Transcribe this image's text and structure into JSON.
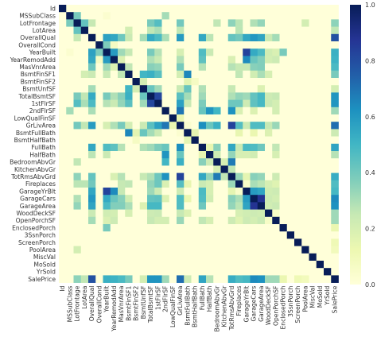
{
  "chart_data": {
    "type": "heatmap",
    "title": "",
    "xlabel": "",
    "ylabel": "",
    "variables": [
      "Id",
      "MSSubClass",
      "LotFrontage",
      "LotArea",
      "OverallQual",
      "OverallCond",
      "YearBuilt",
      "YearRemodAdd",
      "MasVnrArea",
      "BsmtFinSF1",
      "BsmtFinSF2",
      "BsmtUnfSF",
      "TotalBsmtSF",
      "1stFlrSF",
      "2ndFlrSF",
      "LowQualFinSF",
      "GrLivArea",
      "BsmtFullBath",
      "BsmtHalfBath",
      "FullBath",
      "HalfBath",
      "BedroomAbvGr",
      "KitchenAbvGr",
      "TotRmsAbvGrd",
      "Fireplaces",
      "GarageYrBlt",
      "GarageCars",
      "GarageArea",
      "WoodDeckSF",
      "OpenPorchSF",
      "EnclosedPorch",
      "3SsnPorch",
      "ScreenPorch",
      "PoolArea",
      "MiscVal",
      "MoSold",
      "YrSold",
      "SalePrice"
    ],
    "x_tick_labels": [
      "Id",
      "MSSubClass",
      "LotFrontage",
      "LotArea",
      "OverallQual",
      "OverallCond",
      "YearBuilt",
      "YearRemodAdd",
      "MasVnrArea",
      "BsmtFinSF1",
      "BsmtFinSF2",
      "BsmtUnfSF",
      "TotalBsmtSF",
      "1stFlrSF",
      "2ndFlrSF",
      "LowQualFinSF",
      "GrLivArea",
      "BsmtFullBath",
      "BsmtHalfBath",
      "FullBath",
      "HalfBath",
      "BedroomAbvGr",
      "KitchenAbvGr",
      "TotRmsAbvGrd",
      "Fireplaces",
      "GarageYrBlt",
      "GarageCars",
      "GarageArea",
      "WoodDeckSF",
      "OpenPorchSF",
      "EnclosedPorch",
      "3SsnPorch",
      "ScreenPorch",
      "PoolArea",
      "MiscVal",
      "MoSold",
      "YrSold",
      "SalePrice"
    ],
    "y_tick_labels": [
      "Id",
      "MSSubClass",
      "LotFrontage",
      "LotArea",
      "OverallQual",
      "OverallCond",
      "YearBuilt",
      "YearRemodAdd",
      "MasVnrArea",
      "BsmtFinSF1",
      "BsmtFinSF2",
      "BsmtUnfSF",
      "TotalBsmtSF",
      "1stFlrSF",
      "2ndFlrSF",
      "LowQualFinSF",
      "GrLivArea",
      "BsmtFullBath",
      "BsmtHalfBath",
      "FullBath",
      "HalfBath",
      "BedroomAbvGr",
      "KitchenAbvGr",
      "TotRmsAbvGrd",
      "Fireplaces",
      "GarageYrBlt",
      "GarageCars",
      "GarageArea",
      "WoodDeckSF",
      "OpenPorchSF",
      "EnclosedPorch",
      "3SsnPorch",
      "ScreenPorch",
      "PoolArea",
      "MiscVal",
      "MoSold",
      "YrSold",
      "SalePrice"
    ],
    "value_range": [
      0,
      1
    ],
    "colormap": [
      "#ffffd9",
      "#edf8b1",
      "#c7e9b4",
      "#7fcdbb",
      "#41b6c4",
      "#1d91c0",
      "#225ea8",
      "#253494",
      "#081d58"
    ],
    "colorbar": {
      "ticks": [
        0.0,
        0.2,
        0.4,
        0.6,
        0.8,
        1.0
      ],
      "tick_labels": [
        "0.0",
        "0.2",
        "0.4",
        "0.6",
        "0.8",
        "1.0"
      ]
    },
    "pairs": [
      [
        "MSSubClass",
        "LotFrontage",
        0.39
      ],
      [
        "MSSubClass",
        "2ndFlrSF",
        0.31
      ],
      [
        "MSSubClass",
        "YearBuilt",
        0.03
      ],
      [
        "LotFrontage",
        "LotArea",
        0.43
      ],
      [
        "LotFrontage",
        "1stFlrSF",
        0.46
      ],
      [
        "LotFrontage",
        "TotalBsmtSF",
        0.39
      ],
      [
        "LotFrontage",
        "GrLivArea",
        0.4
      ],
      [
        "LotFrontage",
        "TotRmsAbvGrd",
        0.35
      ],
      [
        "LotFrontage",
        "GarageArea",
        0.34
      ],
      [
        "LotFrontage",
        "GarageCars",
        0.29
      ],
      [
        "LotFrontage",
        "SalePrice",
        0.35
      ],
      [
        "LotFrontage",
        "OverallQual",
        0.25
      ],
      [
        "LotFrontage",
        "BedroomAbvGr",
        0.26
      ],
      [
        "LotFrontage",
        "PoolArea",
        0.21
      ],
      [
        "LotFrontage",
        "Fireplaces",
        0.27
      ],
      [
        "LotArea",
        "TotalBsmtSF",
        0.26
      ],
      [
        "LotArea",
        "1stFlrSF",
        0.3
      ],
      [
        "LotArea",
        "GrLivArea",
        0.26
      ],
      [
        "LotArea",
        "Fireplaces",
        0.27
      ],
      [
        "LotArea",
        "SalePrice",
        0.26
      ],
      [
        "LotArea",
        "BsmtFinSF1",
        0.21
      ],
      [
        "OverallQual",
        "YearBuilt",
        0.57
      ],
      [
        "OverallQual",
        "YearRemodAdd",
        0.55
      ],
      [
        "OverallQual",
        "MasVnrArea",
        0.41
      ],
      [
        "OverallQual",
        "BsmtFinSF1",
        0.24
      ],
      [
        "OverallQual",
        "BsmtUnfSF",
        0.31
      ],
      [
        "OverallQual",
        "TotalBsmtSF",
        0.54
      ],
      [
        "OverallQual",
        "1stFlrSF",
        0.48
      ],
      [
        "OverallQual",
        "2ndFlrSF",
        0.3
      ],
      [
        "OverallQual",
        "GrLivArea",
        0.59
      ],
      [
        "OverallQual",
        "FullBath",
        0.55
      ],
      [
        "OverallQual",
        "HalfBath",
        0.27
      ],
      [
        "OverallQual",
        "TotRmsAbvGrd",
        0.43
      ],
      [
        "OverallQual",
        "Fireplaces",
        0.4
      ],
      [
        "OverallQual",
        "GarageYrBlt",
        0.55
      ],
      [
        "OverallQual",
        "GarageCars",
        0.6
      ],
      [
        "OverallQual",
        "GarageArea",
        0.56
      ],
      [
        "OverallQual",
        "WoodDeckSF",
        0.24
      ],
      [
        "OverallQual",
        "OpenPorchSF",
        0.31
      ],
      [
        "OverallQual",
        "SalePrice",
        0.79
      ],
      [
        "OverallCond",
        "YearBuilt",
        0.38
      ],
      [
        "OverallCond",
        "YearRemodAdd",
        0.07
      ],
      [
        "YearBuilt",
        "YearRemodAdd",
        0.59
      ],
      [
        "YearBuilt",
        "MasVnrArea",
        0.32
      ],
      [
        "YearBuilt",
        "BsmtFinSF1",
        0.25
      ],
      [
        "YearBuilt",
        "TotalBsmtSF",
        0.39
      ],
      [
        "YearBuilt",
        "1stFlrSF",
        0.28
      ],
      [
        "YearBuilt",
        "GrLivArea",
        0.2
      ],
      [
        "YearBuilt",
        "FullBath",
        0.47
      ],
      [
        "YearBuilt",
        "HalfBath",
        0.24
      ],
      [
        "YearBuilt",
        "GarageYrBlt",
        0.83
      ],
      [
        "YearBuilt",
        "GarageCars",
        0.54
      ],
      [
        "YearBuilt",
        "GarageArea",
        0.48
      ],
      [
        "YearBuilt",
        "OpenPorchSF",
        0.19
      ],
      [
        "YearBuilt",
        "EnclosedPorch",
        0.39
      ],
      [
        "YearBuilt",
        "SalePrice",
        0.52
      ],
      [
        "YearBuilt",
        "WoodDeckSF",
        0.22
      ],
      [
        "YearRemodAdd",
        "MasVnrArea",
        0.18
      ],
      [
        "YearRemodAdd",
        "TotalBsmtSF",
        0.29
      ],
      [
        "YearRemodAdd",
        "1stFlrSF",
        0.24
      ],
      [
        "YearRemodAdd",
        "GrLivArea",
        0.29
      ],
      [
        "YearRemodAdd",
        "FullBath",
        0.44
      ],
      [
        "YearRemodAdd",
        "TotRmsAbvGrd",
        0.19
      ],
      [
        "YearRemodAdd",
        "GarageYrBlt",
        0.64
      ],
      [
        "YearRemodAdd",
        "GarageCars",
        0.42
      ],
      [
        "YearRemodAdd",
        "GarageArea",
        0.37
      ],
      [
        "YearRemodAdd",
        "OpenPorchSF",
        0.23
      ],
      [
        "YearRemodAdd",
        "SalePrice",
        0.51
      ],
      [
        "YearRemodAdd",
        "WoodDeckSF",
        0.21
      ],
      [
        "MasVnrArea",
        "BsmtFinSF1",
        0.26
      ],
      [
        "MasVnrArea",
        "TotalBsmtSF",
        0.36
      ],
      [
        "MasVnrArea",
        "1stFlrSF",
        0.34
      ],
      [
        "MasVnrArea",
        "GrLivArea",
        0.39
      ],
      [
        "MasVnrArea",
        "FullBath",
        0.28
      ],
      [
        "MasVnrArea",
        "TotRmsAbvGrd",
        0.28
      ],
      [
        "MasVnrArea",
        "Fireplaces",
        0.25
      ],
      [
        "MasVnrArea",
        "GarageYrBlt",
        0.25
      ],
      [
        "MasVnrArea",
        "GarageCars",
        0.36
      ],
      [
        "MasVnrArea",
        "GarageArea",
        0.37
      ],
      [
        "MasVnrArea",
        "SalePrice",
        0.48
      ],
      [
        "BsmtFinSF1",
        "BsmtUnfSF",
        0.5
      ],
      [
        "BsmtFinSF1",
        "TotalBsmtSF",
        0.52
      ],
      [
        "BsmtFinSF1",
        "1stFlrSF",
        0.45
      ],
      [
        "BsmtFinSF1",
        "BsmtFullBath",
        0.65
      ],
      [
        "BsmtFinSF1",
        "Fireplaces",
        0.26
      ],
      [
        "BsmtFinSF1",
        "GarageCars",
        0.22
      ],
      [
        "BsmtFinSF1",
        "GarageArea",
        0.3
      ],
      [
        "BsmtFinSF1",
        "WoodDeckSF",
        0.2
      ],
      [
        "BsmtFinSF1",
        "SalePrice",
        0.39
      ],
      [
        "BsmtFinSF1",
        "GrLivArea",
        0.21
      ],
      [
        "BsmtFinSF2",
        "BsmtUnfSF",
        0.21
      ],
      [
        "BsmtFinSF2",
        "BsmtHalfBath",
        0.07
      ],
      [
        "BsmtFinSF2",
        "BsmtFullBath",
        0.16
      ],
      [
        "BsmtUnfSF",
        "TotalBsmtSF",
        0.42
      ],
      [
        "BsmtUnfSF",
        "1stFlrSF",
        0.32
      ],
      [
        "BsmtUnfSF",
        "BsmtFullBath",
        0.42
      ],
      [
        "BsmtUnfSF",
        "GrLivArea",
        0.24
      ],
      [
        "BsmtUnfSF",
        "FullBath",
        0.29
      ],
      [
        "BsmtUnfSF",
        "TotRmsAbvGrd",
        0.25
      ],
      [
        "BsmtUnfSF",
        "SalePrice",
        0.21
      ],
      [
        "BsmtUnfSF",
        "GarageArea",
        0.18
      ],
      [
        "TotalBsmtSF",
        "1stFlrSF",
        0.82
      ],
      [
        "TotalBsmtSF",
        "GrLivArea",
        0.45
      ],
      [
        "TotalBsmtSF",
        "BsmtFullBath",
        0.31
      ],
      [
        "TotalBsmtSF",
        "FullBath",
        0.32
      ],
      [
        "TotalBsmtSF",
        "TotRmsAbvGrd",
        0.29
      ],
      [
        "TotalBsmtSF",
        "Fireplaces",
        0.34
      ],
      [
        "TotalBsmtSF",
        "GarageYrBlt",
        0.32
      ],
      [
        "TotalBsmtSF",
        "GarageCars",
        0.43
      ],
      [
        "TotalBsmtSF",
        "GarageArea",
        0.49
      ],
      [
        "TotalBsmtSF",
        "WoodDeckSF",
        0.23
      ],
      [
        "TotalBsmtSF",
        "OpenPorchSF",
        0.25
      ],
      [
        "TotalBsmtSF",
        "SalePrice",
        0.61
      ],
      [
        "1stFlrSF",
        "GrLivArea",
        0.57
      ],
      [
        "1stFlrSF",
        "BsmtFullBath",
        0.24
      ],
      [
        "1stFlrSF",
        "FullBath",
        0.38
      ],
      [
        "1stFlrSF",
        "TotRmsAbvGrd",
        0.41
      ],
      [
        "1stFlrSF",
        "Fireplaces",
        0.41
      ],
      [
        "1stFlrSF",
        "GarageYrBlt",
        0.23
      ],
      [
        "1stFlrSF",
        "GarageCars",
        0.44
      ],
      [
        "1stFlrSF",
        "GarageArea",
        0.49
      ],
      [
        "1stFlrSF",
        "WoodDeckSF",
        0.24
      ],
      [
        "1stFlrSF",
        "OpenPorchSF",
        0.21
      ],
      [
        "1stFlrSF",
        "SalePrice",
        0.61
      ],
      [
        "2ndFlrSF",
        "GrLivArea",
        0.69
      ],
      [
        "2ndFlrSF",
        "FullBath",
        0.42
      ],
      [
        "2ndFlrSF",
        "HalfBath",
        0.61
      ],
      [
        "2ndFlrSF",
        "BedroomAbvGr",
        0.5
      ],
      [
        "2ndFlrSF",
        "TotRmsAbvGrd",
        0.62
      ],
      [
        "2ndFlrSF",
        "Fireplaces",
        0.19
      ],
      [
        "2ndFlrSF",
        "GarageCars",
        0.18
      ],
      [
        "2ndFlrSF",
        "OpenPorchSF",
        0.21
      ],
      [
        "2ndFlrSF",
        "SalePrice",
        0.32
      ],
      [
        "LowQualFinSF",
        "GrLivArea",
        0.13
      ],
      [
        "GrLivArea",
        "BsmtFullBath",
        0.03
      ],
      [
        "GrLivArea",
        "FullBath",
        0.63
      ],
      [
        "GrLivArea",
        "HalfBath",
        0.42
      ],
      [
        "GrLivArea",
        "BedroomAbvGr",
        0.52
      ],
      [
        "GrLivArea",
        "TotRmsAbvGrd",
        0.83
      ],
      [
        "GrLivArea",
        "Fireplaces",
        0.46
      ],
      [
        "GrLivArea",
        "GarageYrBlt",
        0.23
      ],
      [
        "GrLivArea",
        "GarageCars",
        0.47
      ],
      [
        "GrLivArea",
        "GarageArea",
        0.47
      ],
      [
        "GrLivArea",
        "WoodDeckSF",
        0.25
      ],
      [
        "GrLivArea",
        "OpenPorchSF",
        0.33
      ],
      [
        "GrLivArea",
        "SalePrice",
        0.71
      ],
      [
        "BsmtFullBath",
        "BsmtHalfBath",
        0.15
      ],
      [
        "BsmtFullBath",
        "Fireplaces",
        0.14
      ],
      [
        "BsmtFullBath",
        "GarageCars",
        0.13
      ],
      [
        "BsmtFullBath",
        "SalePrice",
        0.23
      ],
      [
        "BsmtFullBath",
        "WoodDeckSF",
        0.18
      ],
      [
        "FullBath",
        "HalfBath",
        0.14
      ],
      [
        "FullBath",
        "BedroomAbvGr",
        0.36
      ],
      [
        "FullBath",
        "TotRmsAbvGrd",
        0.55
      ],
      [
        "FullBath",
        "GarageYrBlt",
        0.48
      ],
      [
        "FullBath",
        "GarageCars",
        0.47
      ],
      [
        "FullBath",
        "GarageArea",
        0.41
      ],
      [
        "FullBath",
        "OpenPorchSF",
        0.26
      ],
      [
        "FullBath",
        "SalePrice",
        0.56
      ],
      [
        "FullBath",
        "Fireplaces",
        0.24
      ],
      [
        "HalfBath",
        "BedroomAbvGr",
        0.23
      ],
      [
        "HalfBath",
        "TotRmsAbvGrd",
        0.34
      ],
      [
        "HalfBath",
        "Fireplaces",
        0.2
      ],
      [
        "HalfBath",
        "GarageYrBlt",
        0.2
      ],
      [
        "HalfBath",
        "GarageCars",
        0.22
      ],
      [
        "HalfBath",
        "OpenPorchSF",
        0.2
      ],
      [
        "HalfBath",
        "SalePrice",
        0.28
      ],
      [
        "BedroomAbvGr",
        "KitchenAbvGr",
        0.2
      ],
      [
        "BedroomAbvGr",
        "TotRmsAbvGrd",
        0.68
      ],
      [
        "KitchenAbvGr",
        "TotRmsAbvGrd",
        0.26
      ],
      [
        "TotRmsAbvGrd",
        "Fireplaces",
        0.33
      ],
      [
        "TotRmsAbvGrd",
        "GarageCars",
        0.36
      ],
      [
        "TotRmsAbvGrd",
        "GarageArea",
        0.34
      ],
      [
        "TotRmsAbvGrd",
        "OpenPorchSF",
        0.23
      ],
      [
        "TotRmsAbvGrd",
        "SalePrice",
        0.53
      ],
      [
        "TotRmsAbvGrd",
        "GarageYrBlt",
        0.15
      ],
      [
        "Fireplaces",
        "GarageYrBlt",
        0.05
      ],
      [
        "Fireplaces",
        "GarageCars",
        0.3
      ],
      [
        "Fireplaces",
        "GarageArea",
        0.27
      ],
      [
        "Fireplaces",
        "WoodDeckSF",
        0.2
      ],
      [
        "Fireplaces",
        "OpenPorchSF",
        0.17
      ],
      [
        "Fireplaces",
        "SalePrice",
        0.47
      ],
      [
        "GarageYrBlt",
        "GarageCars",
        0.59
      ],
      [
        "GarageYrBlt",
        "GarageArea",
        0.56
      ],
      [
        "GarageYrBlt",
        "SalePrice",
        0.49
      ],
      [
        "GarageYrBlt",
        "WoodDeckSF",
        0.22
      ],
      [
        "GarageYrBlt",
        "OpenPorchSF",
        0.23
      ],
      [
        "GarageCars",
        "GarageArea",
        0.88
      ],
      [
        "GarageCars",
        "WoodDeckSF",
        0.23
      ],
      [
        "GarageCars",
        "OpenPorchSF",
        0.21
      ],
      [
        "GarageCars",
        "SalePrice",
        0.64
      ],
      [
        "GarageArea",
        "WoodDeckSF",
        0.22
      ],
      [
        "GarageArea",
        "OpenPorchSF",
        0.24
      ],
      [
        "GarageArea",
        "SalePrice",
        0.62
      ],
      [
        "WoodDeckSF",
        "OpenPorchSF",
        0.06
      ],
      [
        "WoodDeckSF",
        "SalePrice",
        0.32
      ],
      [
        "OpenPorchSF",
        "SalePrice",
        0.32
      ],
      [
        "EnclosedPorch",
        "SalePrice",
        0.13
      ],
      [
        "ScreenPorch",
        "SalePrice",
        0.11
      ],
      [
        "PoolArea",
        "SalePrice",
        0.09
      ]
    ]
  }
}
